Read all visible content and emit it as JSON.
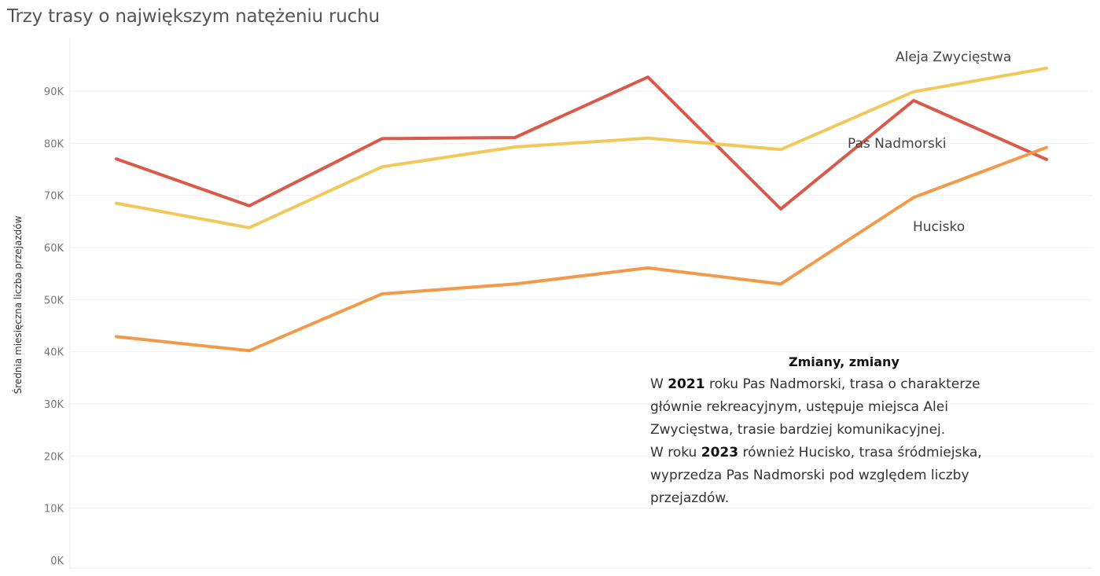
{
  "chart_data": {
    "type": "line",
    "title": "Trzy trasy o największym natężeniu ruchu",
    "ylabel": "Średnia miesięczna liczba przejazdów",
    "xlabel": "",
    "ylim": [
      0,
      97000
    ],
    "yticks": [
      {
        "value": 0,
        "label": "0K"
      },
      {
        "value": 10000,
        "label": "10K"
      },
      {
        "value": 20000,
        "label": "20K"
      },
      {
        "value": 30000,
        "label": "30K"
      },
      {
        "value": 40000,
        "label": "40K"
      },
      {
        "value": 50000,
        "label": "50K"
      },
      {
        "value": 60000,
        "label": "60K"
      },
      {
        "value": 70000,
        "label": "70K"
      },
      {
        "value": 80000,
        "label": "80K"
      },
      {
        "value": 90000,
        "label": "90K"
      }
    ],
    "grid": true,
    "points": 8,
    "series": [
      {
        "name": "Pas Nadmorski",
        "color": "#d9594a",
        "values": [
          77000,
          68000,
          80900,
          81100,
          92700,
          67400,
          88200,
          76900
        ]
      },
      {
        "name": "Aleja Zwycięstwa",
        "color": "#f2c85b",
        "values": [
          68500,
          63800,
          75500,
          79300,
          81000,
          78800,
          89900,
          94400
        ]
      },
      {
        "name": "Hucisko",
        "color": "#f2994a",
        "values": [
          42900,
          40200,
          51100,
          53000,
          56100,
          53000,
          69600,
          79200
        ]
      }
    ]
  },
  "annotation": {
    "title": "Zmiany, zmiany",
    "p1_before": "W ",
    "p1_year": "2021",
    "p1_after": " roku Pas Nadmorski, trasa o charakterze głównie rekreacyjnym, ustępuje miejsca Alei Zwycięstwa, trasie bardziej komunikacyjnej.",
    "p2_before": "W roku ",
    "p2_year": "2023",
    "p2_after": " również Hucisko, trasa śródmiejska, wyprzedza Pas Nadmorski pod względem liczby przejazdów."
  }
}
